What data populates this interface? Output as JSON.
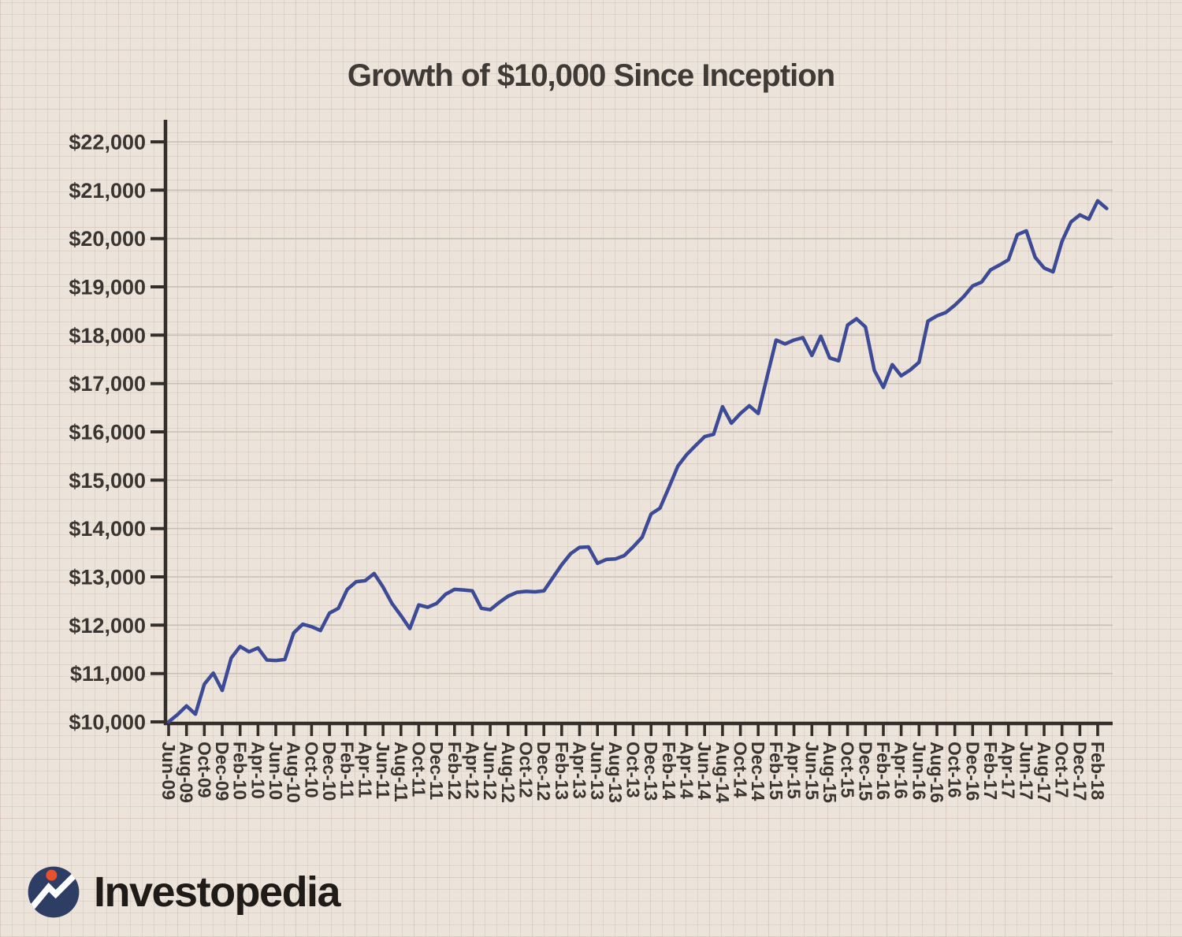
{
  "title": "Growth of $10,000 Since Inception",
  "logo": {
    "brand": "Investopedia"
  },
  "colors": {
    "background": "#ece4db",
    "grid_minor": "#ddd0c7",
    "grid_major": "#c9c0b5",
    "axis": "#332e2a",
    "tick_label": "#3a3531",
    "series_line": "#3d4a96",
    "title_text": "#3f3a35",
    "logo_circle": "#2e3d63",
    "logo_dot": "#e8502e",
    "logo_line": "#ffffff",
    "logo_text": "#1e1b19"
  },
  "chart_data": {
    "type": "line",
    "title": "Growth of $10,000 Since Inception",
    "grid": true,
    "legend": "none",
    "ylim": [
      10000,
      22500
    ],
    "y_ticks": [
      10000,
      11000,
      12000,
      13000,
      14000,
      15000,
      16000,
      17000,
      18000,
      19000,
      20000,
      21000,
      22000
    ],
    "y_tick_labels": [
      "$10,000",
      "$11,000",
      "$12,000",
      "$13,000",
      "$14,000",
      "$15,000",
      "$16,000",
      "$17,000",
      "$18,000",
      "$19,000",
      "$20,000",
      "$21,000",
      "$22,000"
    ],
    "x_tick_interval_months": 2,
    "x_tick_labels": [
      "Jun-09",
      "Aug-09",
      "Oct-09",
      "Dec-09",
      "Feb-10",
      "Apr-10",
      "Jun-10",
      "Aug-10",
      "Oct-10",
      "Dec-10",
      "Feb-11",
      "Apr-11",
      "Jun-11",
      "Aug-11",
      "Oct-11",
      "Dec-11",
      "Feb-12",
      "Apr-12",
      "Jun-12",
      "Aug-12",
      "Oct-12",
      "Dec-12",
      "Feb-13",
      "Apr-13",
      "Jun-13",
      "Aug-13",
      "Oct-13",
      "Dec-13",
      "Feb-14",
      "Apr-14",
      "Jun-14",
      "Aug-14",
      "Oct-14",
      "Dec-14",
      "Feb-15",
      "Apr-15",
      "Jun-15",
      "Aug-15",
      "Oct-15",
      "Dec-15",
      "Feb-16",
      "Apr-16",
      "Jun-16",
      "Aug-16",
      "Oct-16",
      "Dec-16",
      "Feb-17",
      "Apr-17",
      "Jun-17",
      "Aug-17",
      "Oct-17",
      "Dec-17",
      "Feb-18"
    ],
    "series": [
      {
        "name": "Growth of $10,000",
        "frequency": "monthly",
        "start_month": "Jun-09",
        "end_month": "Mar-18",
        "values": [
          10000,
          10150,
          10330,
          10160,
          10780,
          11010,
          10650,
          11320,
          11560,
          11450,
          11530,
          11280,
          11270,
          11290,
          11840,
          12020,
          11970,
          11890,
          12250,
          12350,
          12740,
          12900,
          12920,
          13070,
          12790,
          12450,
          12200,
          11930,
          12420,
          12370,
          12450,
          12640,
          12740,
          12730,
          12710,
          12350,
          12320,
          12470,
          12600,
          12680,
          12700,
          12690,
          12710,
          12980,
          13250,
          13480,
          13610,
          13620,
          13280,
          13360,
          13370,
          13440,
          13620,
          13820,
          14300,
          14420,
          14850,
          15290,
          15530,
          15720,
          15900,
          15950,
          16520,
          16180,
          16380,
          16540,
          16380,
          17150,
          17900,
          17820,
          17900,
          17950,
          17580,
          17980,
          17530,
          17470,
          18210,
          18340,
          18170,
          17270,
          16920,
          17390,
          17160,
          17280,
          17440,
          18290,
          18400,
          18470,
          18620,
          18800,
          19020,
          19100,
          19350,
          19450,
          19560,
          20080,
          20160,
          19610,
          19390,
          19310,
          19940,
          20340,
          20490,
          20400,
          20780,
          20620
        ]
      }
    ]
  }
}
